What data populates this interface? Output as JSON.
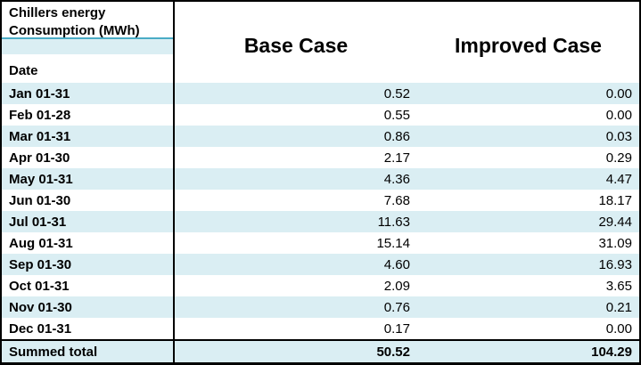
{
  "table": {
    "title_line1": "Chillers energy",
    "title_line2": "Consumption (MWh)",
    "date_header": "Date",
    "base_header": "Base Case",
    "improved_header": "Improved Case",
    "rows": [
      {
        "date": "Jan 01-31",
        "base": "0.52",
        "improved": "0.00"
      },
      {
        "date": "Feb 01-28",
        "base": "0.55",
        "improved": "0.00"
      },
      {
        "date": "Mar 01-31",
        "base": "0.86",
        "improved": "0.03"
      },
      {
        "date": "Apr 01-30",
        "base": "2.17",
        "improved": "0.29"
      },
      {
        "date": "May 01-31",
        "base": "4.36",
        "improved": "4.47"
      },
      {
        "date": "Jun 01-30",
        "base": "7.68",
        "improved": "18.17"
      },
      {
        "date": "Jul 01-31",
        "base": "11.63",
        "improved": "29.44"
      },
      {
        "date": "Aug 01-31",
        "base": "15.14",
        "improved": "31.09"
      },
      {
        "date": "Sep 01-30",
        "base": "4.60",
        "improved": "16.93"
      },
      {
        "date": "Oct 01-31",
        "base": "2.09",
        "improved": "3.65"
      },
      {
        "date": "Nov 01-30",
        "base": "0.76",
        "improved": "0.21"
      },
      {
        "date": "Dec 01-31",
        "base": "0.17",
        "improved": "0.00"
      }
    ],
    "total": {
      "label": "Summed total",
      "base": "50.52",
      "improved": "104.29"
    },
    "colors": {
      "row_fill": "#daeef3",
      "accent_line": "#4bacc6",
      "border": "#000000"
    }
  },
  "chart_data": {
    "type": "table",
    "title": "Chillers energy Consumption (MWh)",
    "columns": [
      "Date",
      "Base Case",
      "Improved Case"
    ],
    "categories": [
      "Jan 01-31",
      "Feb 01-28",
      "Mar 01-31",
      "Apr 01-30",
      "May 01-31",
      "Jun 01-30",
      "Jul 01-31",
      "Aug 01-31",
      "Sep 01-30",
      "Oct 01-31",
      "Nov 01-30",
      "Dec 01-31"
    ],
    "series": [
      {
        "name": "Base Case",
        "values": [
          0.52,
          0.55,
          0.86,
          2.17,
          4.36,
          7.68,
          11.63,
          15.14,
          4.6,
          2.09,
          0.76,
          0.17
        ]
      },
      {
        "name": "Improved Case",
        "values": [
          0.0,
          0.0,
          0.03,
          0.29,
          4.47,
          18.17,
          29.44,
          31.09,
          16.93,
          3.65,
          0.21,
          0.0
        ]
      }
    ],
    "totals": {
      "label": "Summed total",
      "Base Case": 50.52,
      "Improved Case": 104.29
    },
    "units": "MWh"
  }
}
